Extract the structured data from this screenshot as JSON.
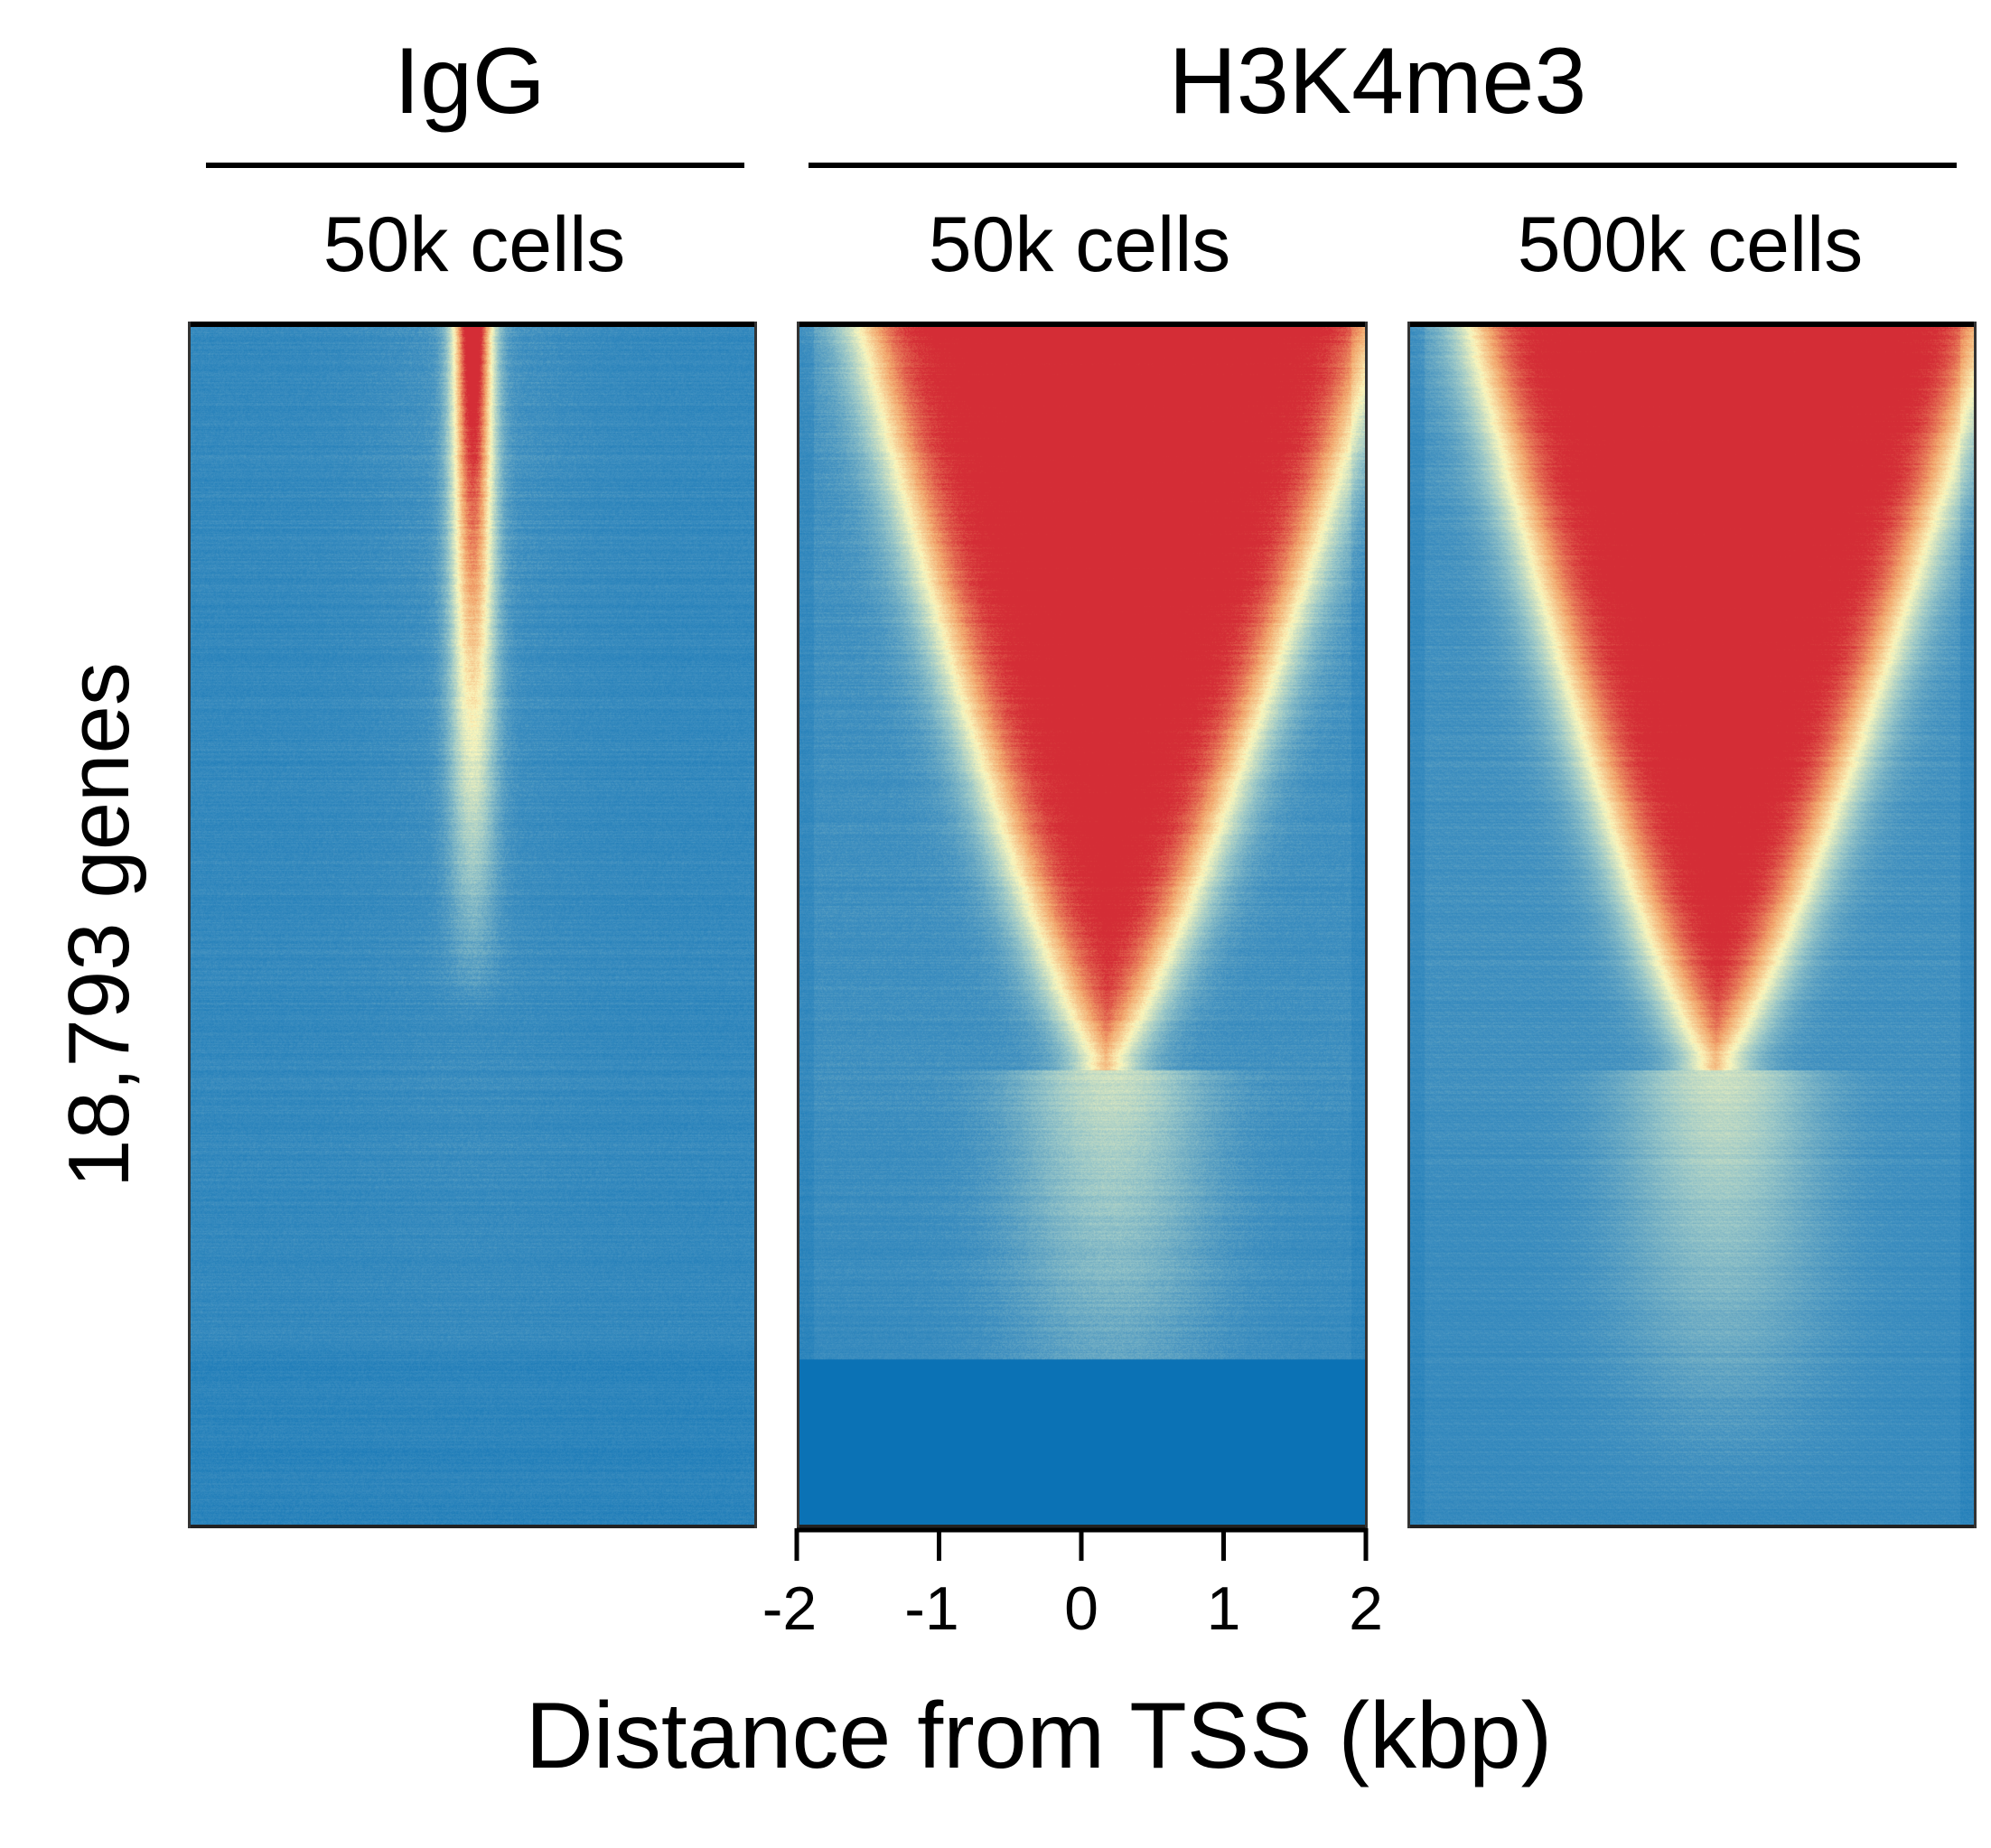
{
  "chart_data": {
    "type": "heatmap",
    "groups": [
      {
        "label": "IgG",
        "panels": [
          0
        ]
      },
      {
        "label": "H3K4me3",
        "panels": [
          1,
          2
        ]
      }
    ],
    "panels": [
      {
        "subtitle": "50k cells",
        "antibody": "IgG",
        "signal": "narrow",
        "peak_rows_fraction": 0.58
      },
      {
        "subtitle": "50k cells",
        "antibody": "H3K4me3",
        "signal": "broad",
        "peak_rows_fraction": 0.62,
        "empty_rows_fraction_bottom": 0.14
      },
      {
        "subtitle": "500k cells",
        "antibody": "H3K4me3",
        "signal": "broad",
        "peak_rows_fraction": 0.62
      }
    ],
    "ylabel": "18,793 genes",
    "xlabel": "Distance from TSS (kbp)",
    "x_ticks": [
      -2,
      -1,
      0,
      1,
      2
    ],
    "xlim": [
      -2,
      2
    ],
    "rows": 18793,
    "colormap": [
      "#0b72b5",
      "#3f8fc0",
      "#9cc8c8",
      "#fbf7bd",
      "#f2a66c",
      "#d42d36"
    ]
  }
}
